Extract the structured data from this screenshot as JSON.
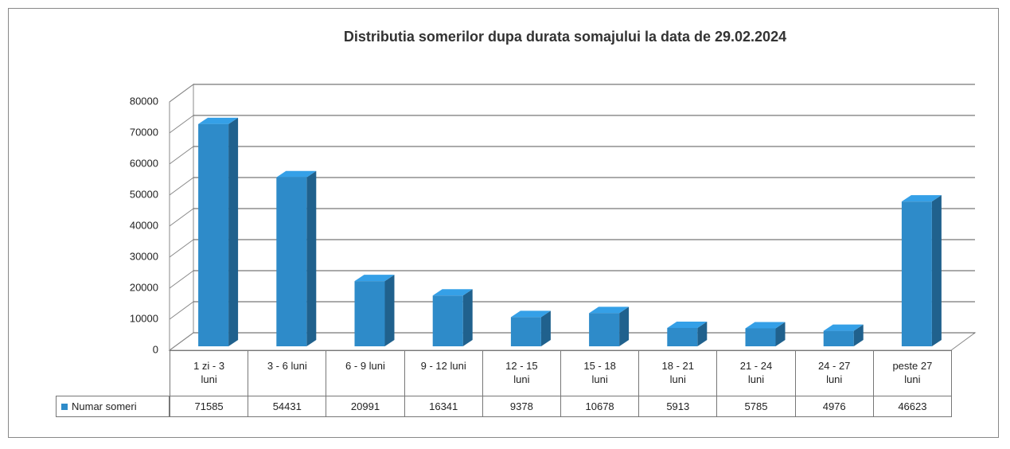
{
  "chart_data": {
    "type": "bar",
    "title": "Distributia somerilor dupa durata somajului la data de 29.02.2024",
    "categories": [
      "1 zi - 3 luni",
      "3 - 6 luni",
      "6 - 9 luni",
      "9 - 12 luni",
      "12 - 15 luni",
      "15 - 18 luni",
      "18 - 21 luni",
      "21 - 24 luni",
      "24 - 27 luni",
      "peste 27 luni"
    ],
    "series": [
      {
        "name": "Numar someri",
        "color": "#2e8bc9",
        "values": [
          71585,
          54431,
          20991,
          16341,
          9378,
          10678,
          5913,
          5785,
          4976,
          46623
        ]
      }
    ],
    "ylim": [
      0,
      80000
    ],
    "yticks": [
      0,
      10000,
      20000,
      30000,
      40000,
      50000,
      60000,
      70000,
      80000
    ],
    "grid": true
  }
}
